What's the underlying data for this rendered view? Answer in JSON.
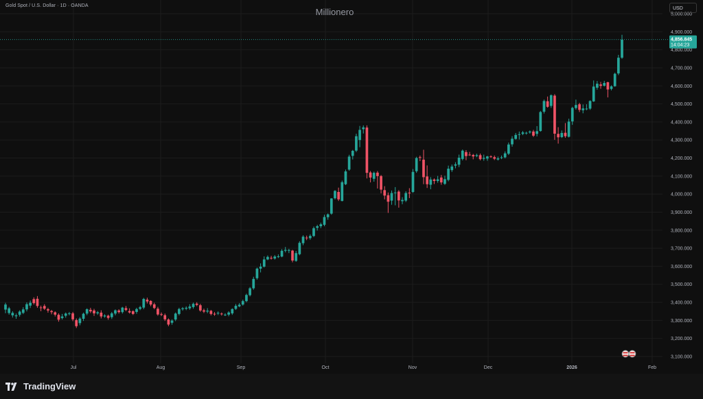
{
  "header": {
    "symbol_text": "Gold Spot / U.S. Dollar · 1D · OANDA",
    "watermark": "Millionero",
    "currency": "USD"
  },
  "price_tag": {
    "price": "4,856.845",
    "countdown": "14:04:23"
  },
  "brand": {
    "name": "TradingView"
  },
  "colors": {
    "background": "#0f0f0f",
    "up": "#26a69a",
    "down": "#ef5366",
    "grid": "#1c1c1c",
    "axis_text": "#b2b5be"
  },
  "chart_data": {
    "type": "candlestick",
    "title": "Gold Spot / U.S. Dollar · 1D · OANDA",
    "x_labels": [
      "Jul",
      "Aug",
      "Sep",
      "Oct",
      "Nov",
      "Dec",
      "2026",
      "Feb"
    ],
    "y_ticks": [
      "3,100.000",
      "3,200.000",
      "3,300.000",
      "3,400.000",
      "3,500.000",
      "3,600.000",
      "3,700.000",
      "3,800.000",
      "3,900.000",
      "4,000.000",
      "4,100.000",
      "4,200.000",
      "4,300.000",
      "4,400.000",
      "4,500.000",
      "4,600.000",
      "4,700.000",
      "4,800.000",
      "4,900.000",
      "5,000.000"
    ],
    "ylim": [
      3080,
      5040
    ],
    "last_price": 4856.845,
    "candles": [
      [
        3360,
        3388,
        3340,
        3398
      ],
      [
        3341,
        3367,
        3332,
        3375
      ],
      [
        3328,
        3342,
        3316,
        3351
      ],
      [
        3323,
        3328,
        3309,
        3338
      ],
      [
        3331,
        3349,
        3321,
        3356
      ],
      [
        3342,
        3361,
        3335,
        3373
      ],
      [
        3361,
        3390,
        3350,
        3400
      ],
      [
        3382,
        3398,
        3369,
        3410
      ],
      [
        3418,
        3396,
        3388,
        3428
      ],
      [
        3420,
        3380,
        3370,
        3435
      ],
      [
        3372,
        3369,
        3351,
        3382
      ],
      [
        3380,
        3365,
        3358,
        3390
      ],
      [
        3362,
        3355,
        3343,
        3370
      ],
      [
        3352,
        3346,
        3334,
        3358
      ],
      [
        3345,
        3332,
        3322,
        3350
      ],
      [
        3331,
        3304,
        3293,
        3339
      ],
      [
        3313,
        3322,
        3305,
        3336
      ],
      [
        3326,
        3338,
        3315,
        3344
      ],
      [
        3338,
        3339,
        3328,
        3347
      ],
      [
        3339,
        3306,
        3296,
        3347
      ],
      [
        3302,
        3268,
        3258,
        3311
      ],
      [
        3285,
        3310,
        3273,
        3318
      ],
      [
        3309,
        3337,
        3297,
        3343
      ],
      [
        3338,
        3362,
        3329,
        3367
      ],
      [
        3359,
        3350,
        3341,
        3370
      ],
      [
        3355,
        3339,
        3325,
        3364
      ],
      [
        3339,
        3345,
        3331,
        3352
      ],
      [
        3343,
        3322,
        3311,
        3356
      ],
      [
        3322,
        3327,
        3315,
        3334
      ],
      [
        3326,
        3314,
        3304,
        3332
      ],
      [
        3318,
        3339,
        3308,
        3347
      ],
      [
        3338,
        3356,
        3328,
        3361
      ],
      [
        3355,
        3346,
        3338,
        3362
      ],
      [
        3346,
        3371,
        3338,
        3375
      ],
      [
        3368,
        3358,
        3351,
        3380
      ],
      [
        3352,
        3344,
        3338,
        3367
      ],
      [
        3351,
        3336,
        3330,
        3356
      ],
      [
        3347,
        3363,
        3337,
        3370
      ],
      [
        3364,
        3373,
        3357,
        3381
      ],
      [
        3371,
        3419,
        3362,
        3425
      ],
      [
        3415,
        3405,
        3394,
        3426
      ],
      [
        3408,
        3388,
        3379,
        3412
      ],
      [
        3389,
        3369,
        3362,
        3398
      ],
      [
        3365,
        3333,
        3326,
        3375
      ],
      [
        3335,
        3331,
        3324,
        3344
      ],
      [
        3329,
        3306,
        3297,
        3338
      ],
      [
        3305,
        3277,
        3268,
        3311
      ],
      [
        3287,
        3299,
        3276,
        3306
      ],
      [
        3305,
        3338,
        3296,
        3344
      ],
      [
        3336,
        3363,
        3328,
        3370
      ],
      [
        3362,
        3367,
        3354,
        3374
      ],
      [
        3365,
        3370,
        3357,
        3378
      ],
      [
        3367,
        3377,
        3359,
        3390
      ],
      [
        3374,
        3392,
        3365,
        3399
      ],
      [
        3393,
        3386,
        3379,
        3401
      ],
      [
        3384,
        3355,
        3348,
        3392
      ],
      [
        3356,
        3349,
        3341,
        3365
      ],
      [
        3349,
        3354,
        3340,
        3368
      ],
      [
        3353,
        3336,
        3328,
        3358
      ],
      [
        3337,
        3334,
        3326,
        3346
      ],
      [
        3338,
        3342,
        3330,
        3350
      ],
      [
        3338,
        3334,
        3327,
        3344
      ],
      [
        3331,
        3332,
        3324,
        3340
      ],
      [
        3332,
        3344,
        3323,
        3351
      ],
      [
        3339,
        3363,
        3331,
        3367
      ],
      [
        3364,
        3381,
        3358,
        3391
      ],
      [
        3378,
        3387,
        3373,
        3396
      ],
      [
        3388,
        3407,
        3382,
        3415
      ],
      [
        3407,
        3441,
        3401,
        3448
      ],
      [
        3440,
        3478,
        3433,
        3485
      ],
      [
        3478,
        3530,
        3470,
        3542
      ],
      [
        3534,
        3587,
        3526,
        3593
      ],
      [
        3587,
        3598,
        3566,
        3616
      ],
      [
        3598,
        3638,
        3593,
        3655
      ],
      [
        3638,
        3652,
        3634,
        3660
      ],
      [
        3647,
        3645,
        3637,
        3658
      ],
      [
        3643,
        3654,
        3637,
        3662
      ],
      [
        3651,
        3655,
        3646,
        3666
      ],
      [
        3654,
        3686,
        3650,
        3695
      ],
      [
        3686,
        3691,
        3677,
        3707
      ],
      [
        3686,
        3690,
        3673,
        3697
      ],
      [
        3687,
        3632,
        3622,
        3691
      ],
      [
        3630,
        3673,
        3625,
        3685
      ],
      [
        3667,
        3730,
        3661,
        3739
      ],
      [
        3728,
        3764,
        3717,
        3772
      ],
      [
        3759,
        3757,
        3745,
        3770
      ],
      [
        3756,
        3768,
        3747,
        3777
      ],
      [
        3768,
        3811,
        3762,
        3820
      ],
      [
        3813,
        3822,
        3798,
        3830
      ],
      [
        3822,
        3833,
        3811,
        3842
      ],
      [
        3830,
        3873,
        3822,
        3886
      ],
      [
        3872,
        3888,
        3858,
        3893
      ],
      [
        3892,
        3976,
        3886,
        3978
      ],
      [
        3977,
        4018,
        3970,
        4022
      ],
      [
        4012,
        3971,
        3962,
        4036
      ],
      [
        3962,
        4066,
        3960,
        4075
      ],
      [
        4055,
        4126,
        4050,
        4136
      ],
      [
        4136,
        4208,
        4130,
        4218
      ],
      [
        4212,
        4240,
        4192,
        4245
      ],
      [
        4241,
        4321,
        4233,
        4335
      ],
      [
        4300,
        4356,
        4260,
        4378
      ],
      [
        4360,
        4370,
        4336,
        4381
      ],
      [
        4369,
        4118,
        4087,
        4381
      ],
      [
        4120,
        4092,
        4065,
        4128
      ],
      [
        4085,
        4118,
        4069,
        4125
      ],
      [
        4119,
        4100,
        4031,
        4128
      ],
      [
        4100,
        4025,
        4004,
        4106
      ],
      [
        4022,
        3992,
        3971,
        4044
      ],
      [
        3994,
        3958,
        3896,
        4009
      ],
      [
        3964,
        4006,
        3941,
        4020
      ],
      [
        4007,
        4009,
        3938,
        4039
      ],
      [
        4014,
        3965,
        3925,
        4022
      ],
      [
        3961,
        3968,
        3944,
        3983
      ],
      [
        3964,
        4006,
        3956,
        4016
      ],
      [
        4008,
        4004,
        3978,
        4033
      ],
      [
        4012,
        4123,
        4007,
        4139
      ],
      [
        4127,
        4200,
        4118,
        4207
      ],
      [
        4205,
        4202,
        4183,
        4214
      ],
      [
        4191,
        4094,
        4055,
        4246
      ],
      [
        4098,
        4055,
        4034,
        4159
      ],
      [
        4052,
        4081,
        4027,
        4094
      ],
      [
        4081,
        4073,
        4056,
        4087
      ],
      [
        4073,
        4082,
        4063,
        4101
      ],
      [
        4092,
        4065,
        4052,
        4106
      ],
      [
        4057,
        4083,
        4051,
        4102
      ],
      [
        4079,
        4141,
        4071,
        4158
      ],
      [
        4133,
        4153,
        4123,
        4164
      ],
      [
        4158,
        4165,
        4143,
        4177
      ],
      [
        4163,
        4202,
        4150,
        4219
      ],
      [
        4195,
        4241,
        4187,
        4247
      ],
      [
        4233,
        4211,
        4188,
        4244
      ],
      [
        4219,
        4218,
        4212,
        4234
      ],
      [
        4217,
        4209,
        4193,
        4223
      ],
      [
        4211,
        4216,
        4205,
        4224
      ],
      [
        4216,
        4194,
        4187,
        4225
      ],
      [
        4196,
        4201,
        4185,
        4219
      ],
      [
        4197,
        4209,
        4185,
        4212
      ],
      [
        4209,
        4207,
        4202,
        4215
      ],
      [
        4205,
        4196,
        4189,
        4214
      ],
      [
        4192,
        4198,
        4186,
        4208
      ],
      [
        4202,
        4204,
        4194,
        4214
      ],
      [
        4204,
        4226,
        4198,
        4237
      ],
      [
        4224,
        4275,
        4217,
        4286
      ],
      [
        4276,
        4307,
        4263,
        4321
      ],
      [
        4306,
        4328,
        4302,
        4339
      ],
      [
        4329,
        4332,
        4303,
        4347
      ],
      [
        4334,
        4342,
        4327,
        4350
      ],
      [
        4337,
        4340,
        4330,
        4346
      ],
      [
        4342,
        4347,
        4335,
        4353
      ],
      [
        4347,
        4324,
        4317,
        4356
      ],
      [
        4334,
        4349,
        4320,
        4377
      ],
      [
        4350,
        4455,
        4346,
        4461
      ],
      [
        4457,
        4516,
        4447,
        4524
      ],
      [
        4515,
        4484,
        4479,
        4541
      ],
      [
        4489,
        4548,
        4478,
        4553
      ],
      [
        4546,
        4335,
        4301,
        4554
      ],
      [
        4334,
        4315,
        4280,
        4371
      ],
      [
        4316,
        4339,
        4311,
        4353
      ],
      [
        4340,
        4321,
        4312,
        4394
      ],
      [
        4318,
        4402,
        4314,
        4418
      ],
      [
        4403,
        4478,
        4384,
        4484
      ],
      [
        4477,
        4494,
        4468,
        4524
      ],
      [
        4498,
        4467,
        4455,
        4506
      ],
      [
        4465,
        4475,
        4448,
        4497
      ],
      [
        4471,
        4474,
        4465,
        4498
      ],
      [
        4474,
        4516,
        4467,
        4520
      ],
      [
        4514,
        4596,
        4511,
        4630
      ],
      [
        4590,
        4612,
        4579,
        4627
      ],
      [
        4608,
        4600,
        4584,
        4622
      ],
      [
        4601,
        4616,
        4596,
        4628
      ],
      [
        4620,
        4580,
        4536,
        4623
      ],
      [
        4583,
        4597,
        4575,
        4603
      ],
      [
        4598,
        4667,
        4595,
        4673
      ],
      [
        4669,
        4756,
        4660,
        4772
      ],
      [
        4756,
        4856,
        4750,
        4883
      ]
    ]
  }
}
